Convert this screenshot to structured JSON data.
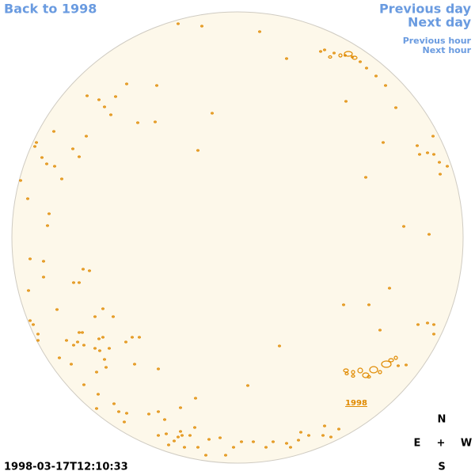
{
  "links": {
    "back": "Back to 1998",
    "previous_day": "Previous day",
    "next_day": "Next day",
    "previous_hour": "Previous hour",
    "next_hour": "Next hour"
  },
  "region_label": "1998",
  "compass": {
    "north": "N",
    "east": "E",
    "center": "+",
    "west": "W",
    "south": "S"
  },
  "timestamp": "1998-03-17T12:10:33"
}
